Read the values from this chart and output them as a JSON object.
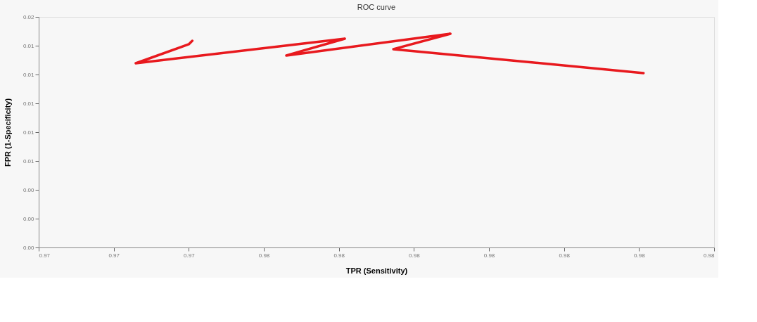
{
  "chart_data": {
    "type": "line",
    "title": "ROC curve",
    "xlabel": "TPR (Sensitivity)",
    "ylabel": "FPR (1-Specificity)",
    "x": [
      0.97407,
      0.974,
      0.97294,
      0.97712,
      0.97595,
      0.97923,
      0.97809,
      0.98309
    ],
    "series": [
      {
        "color": "#e8191e",
        "values": [
          0.01434,
          0.0141,
          0.01278,
          0.01449,
          0.01332,
          0.01483,
          0.01376,
          0.0121
        ]
      }
    ],
    "xlim": [
      0.971,
      0.9845
    ],
    "xticks": [
      {
        "value": 0.971,
        "label": "0.97"
      },
      {
        "value": 0.9725,
        "label": "0.97"
      },
      {
        "value": 0.974,
        "label": "0.97"
      },
      {
        "value": 0.9755,
        "label": "0.98"
      },
      {
        "value": 0.977,
        "label": "0.98"
      },
      {
        "value": 0.9785,
        "label": "0.98"
      },
      {
        "value": 0.98,
        "label": "0.98"
      },
      {
        "value": 0.9815,
        "label": "0.98"
      },
      {
        "value": 0.983,
        "label": "0.98"
      },
      {
        "value": 0.9845,
        "label": "0.98"
      }
    ],
    "ylim": [
      0,
      0.016
    ],
    "yticks": [
      {
        "value": 0,
        "label": "0.00"
      },
      {
        "value": 0.002,
        "label": "0.00"
      },
      {
        "value": 0.004,
        "label": "0.00"
      },
      {
        "value": 0.006,
        "label": "0.01"
      },
      {
        "value": 0.008,
        "label": "0.01"
      },
      {
        "value": 0.01,
        "label": "0.01"
      },
      {
        "value": 0.012,
        "label": "0.01"
      },
      {
        "value": 0.014,
        "label": "0.01"
      },
      {
        "value": 0.016,
        "label": "0.02"
      }
    ],
    "grid": false,
    "legend": false,
    "marker": "none",
    "line_style": "solid"
  }
}
